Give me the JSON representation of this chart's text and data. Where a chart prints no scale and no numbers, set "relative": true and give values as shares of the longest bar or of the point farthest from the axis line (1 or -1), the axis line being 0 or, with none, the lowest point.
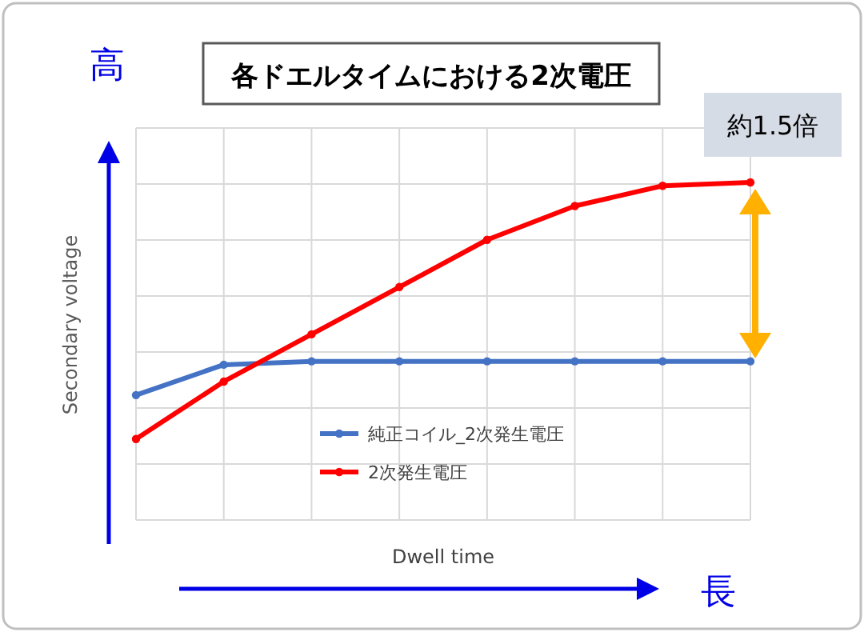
{
  "chart_data": {
    "type": "line",
    "title": "各ドエルタイムにおける2次電圧",
    "xlabel": "Dwell time",
    "ylabel": "Secondary voltage",
    "annotations": [
      "高",
      "長",
      "約1.5倍"
    ],
    "categories": [
      null,
      null,
      null,
      null,
      null,
      null,
      null,
      null
    ],
    "relative": true,
    "grid": true,
    "legend": "bottom",
    "marker": "circle",
    "line_style": "solid",
    "series": [
      {
        "name": "純正コイル_2次発生電圧",
        "color": "#4472c4",
        "values": [
          0.37,
          0.46,
          0.47,
          0.47,
          0.47,
          0.47,
          0.47,
          0.47
        ]
      },
      {
        "name": "2次発生電圧",
        "color": "#ff0000",
        "values": [
          0.24,
          0.41,
          0.55,
          0.69,
          0.83,
          0.93,
          0.99,
          1
        ]
      }
    ]
  }
}
